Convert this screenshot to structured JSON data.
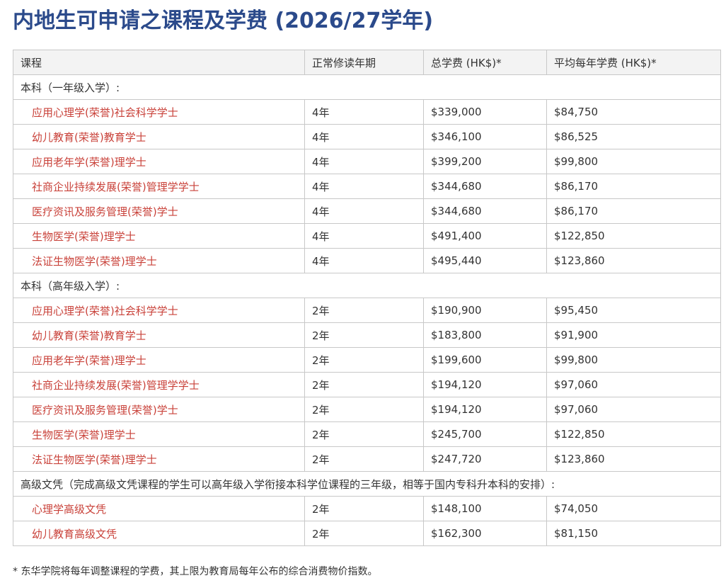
{
  "header": {
    "title": "内地生可申请之课程及学费 (2026/27学年)"
  },
  "table": {
    "columns": [
      "课程",
      "正常修读年期",
      "总学费 (HK$)*",
      "平均每年学费 (HK$)*"
    ],
    "sections": [
      {
        "label": "本科（一年级入学）:",
        "rows": [
          [
            "应用心理学(荣誉)社会科学学士",
            "4年",
            "$339,000",
            "$84,750"
          ],
          [
            "幼儿教育(荣誉)教育学士",
            "4年",
            "$346,100",
            "$86,525"
          ],
          [
            "应用老年学(荣誉)理学士",
            "4年",
            "$399,200",
            "$99,800"
          ],
          [
            "社商企业持续发展(荣誉)管理学学士",
            "4年",
            "$344,680",
            "$86,170"
          ],
          [
            "医疗资讯及服务管理(荣誉)学士",
            "4年",
            "$344,680",
            "$86,170"
          ],
          [
            "生物医学(荣誉)理学士",
            "4年",
            "$491,400",
            "$122,850"
          ],
          [
            "法证生物医学(荣誉)理学士",
            "4年",
            "$495,440",
            "$123,860"
          ]
        ]
      },
      {
        "label": "本科（高年级入学）:",
        "rows": [
          [
            "应用心理学(荣誉)社会科学学士",
            "2年",
            "$190,900",
            "$95,450"
          ],
          [
            "幼儿教育(荣誉)教育学士",
            "2年",
            "$183,800",
            "$91,900"
          ],
          [
            "应用老年学(荣誉)理学士",
            "2年",
            "$199,600",
            "$99,800"
          ],
          [
            "社商企业持续发展(荣誉)管理学学士",
            "2年",
            "$194,120",
            "$97,060"
          ],
          [
            "医疗资讯及服务管理(荣誉)学士",
            "2年",
            "$194,120",
            "$97,060"
          ],
          [
            "生物医学(荣誉)理学士",
            "2年",
            "$245,700",
            "$122,850"
          ],
          [
            "法证生物医学(荣誉)理学士",
            "2年",
            "$247,720",
            "$123,860"
          ]
        ]
      },
      {
        "label": "高级文凭（完成高级文凭课程的学生可以高年级入学衔接本科学位课程的三年级，相等于国内专科升本科的安排）:",
        "rows": [
          [
            "心理学高级文凭",
            "2年",
            "$148,100",
            "$74,050"
          ],
          [
            "幼儿教育高级文凭",
            "2年",
            "$162,300",
            "$81,150"
          ]
        ]
      }
    ]
  },
  "footnote": "* 东华学院将每年调整课程的学费，其上限为教育局每年公布的综合消费物价指数。"
}
